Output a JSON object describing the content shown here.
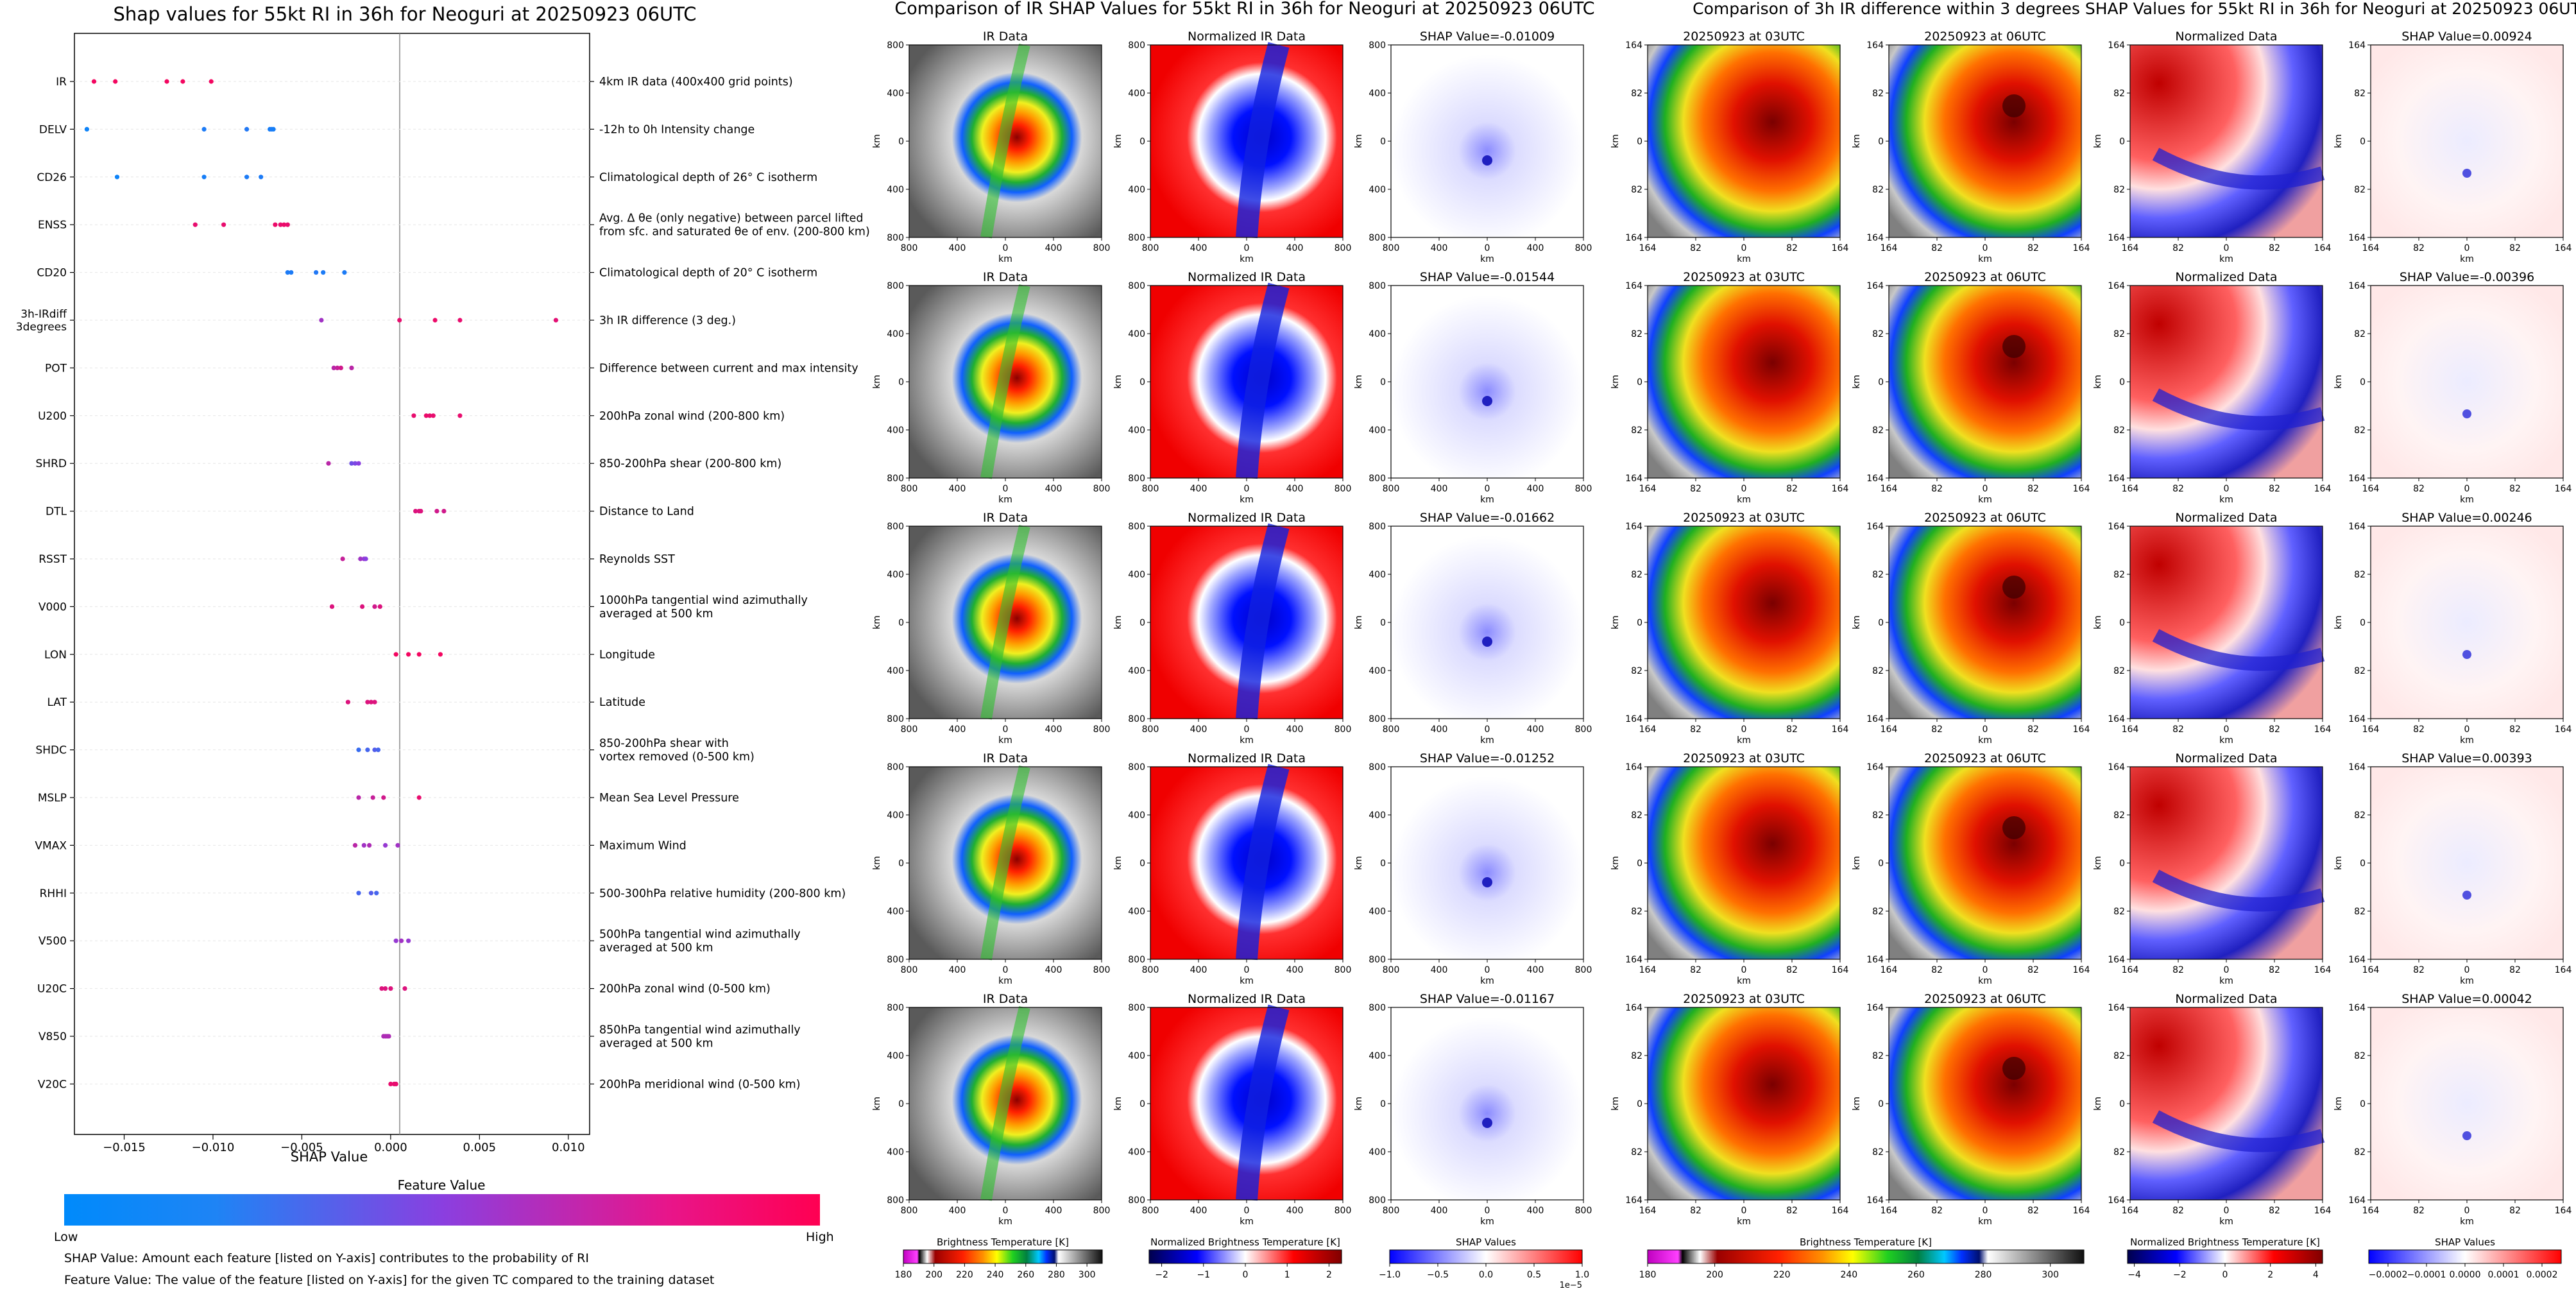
{
  "left_panel": {
    "title": "Shap values for 55kt RI in 36h for Neoguri at 20250923 06UTC",
    "colorbar_title": "Feature Value",
    "low_label": "Low",
    "high_label": "High",
    "note_shap": "SHAP Value: Amount each feature [listed on Y-axis] contributes to the probability of RI",
    "note_feature": "Feature Value: The value of the feature [listed on Y-axis] for the given TC compared to the training dataset",
    "features": [
      {
        "code": "IR",
        "desc": "4km IR data (400x400 grid points)"
      },
      {
        "code": "DELV",
        "desc": "-12h to 0h Intensity change"
      },
      {
        "code": "CD26",
        "desc": "Climatological depth of 26° C isotherm"
      },
      {
        "code": "ENSS",
        "desc": "Avg. Δ θe (only negative) between parcel lifted\nfrom sfc. and saturated θe of env. (200-800 km)"
      },
      {
        "code": "CD20",
        "desc": "Climatological depth of 20° C isotherm"
      },
      {
        "code": "3h-IRdiff\n3degrees",
        "desc": "3h IR difference (3 deg.)"
      },
      {
        "code": "POT",
        "desc": "Difference between current and max intensity"
      },
      {
        "code": "U200",
        "desc": "200hPa zonal wind (200-800 km)"
      },
      {
        "code": "SHRD",
        "desc": "850-200hPa shear (200-800 km)"
      },
      {
        "code": "DTL",
        "desc": "Distance to Land"
      },
      {
        "code": "RSST",
        "desc": "Reynolds SST"
      },
      {
        "code": "V000",
        "desc": "1000hPa tangential wind azimuthally\naveraged at 500 km"
      },
      {
        "code": "LON",
        "desc": "Longitude"
      },
      {
        "code": "LAT",
        "desc": "Latitude"
      },
      {
        "code": "SHDC",
        "desc": "850-200hPa shear with\nvortex removed (0-500 km)"
      },
      {
        "code": "MSLP",
        "desc": "Mean Sea Level Pressure"
      },
      {
        "code": "VMAX",
        "desc": "Maximum Wind"
      },
      {
        "code": "RHHI",
        "desc": "500-300hPa relative humidity (200-800 km)"
      },
      {
        "code": "V500",
        "desc": "500hPa tangential wind azimuthally\naveraged at 500 km"
      },
      {
        "code": "U20C",
        "desc": "200hPa zonal wind (0-500 km)"
      },
      {
        "code": "V850",
        "desc": "850hPa tangential wind azimuthally\naveraged at 500 km"
      },
      {
        "code": "V20C",
        "desc": "200hPa meridional wind (0-500 km)"
      }
    ]
  },
  "chart_data": [
    {
      "type": "scatter",
      "title": "Shap values for 55kt RI in 36h for Neoguri at 20250923 06UTC",
      "xlabel": "SHAP Value",
      "xlim": [
        -0.0178,
        0.0112
      ],
      "xticks": [
        -0.015,
        -0.01,
        -0.005,
        0.0,
        0.005,
        0.01
      ],
      "xtick_labels": [
        "−0.015",
        "−0.010",
        "−0.005",
        "0.000",
        "0.005",
        "0.010"
      ],
      "color_scale": [
        "#008afb",
        "#8a3fe0",
        "#ff0052"
      ],
      "color_scale_label": "Feature Value",
      "categories": [
        "IR",
        "DELV",
        "CD26",
        "ENSS",
        "CD20",
        "3h-IRdiff 3degrees",
        "POT",
        "U200",
        "SHRD",
        "DTL",
        "RSST",
        "V000",
        "LON",
        "LAT",
        "SHDC",
        "MSLP",
        "VMAX",
        "RHHI",
        "V500",
        "U20C",
        "V850",
        "V20C"
      ],
      "series": [
        {
          "name": "IR",
          "points": [
            [
              -0.0167,
              0.95
            ],
            [
              -0.0155,
              0.95
            ],
            [
              -0.0126,
              0.95
            ],
            [
              -0.0117,
              0.95
            ],
            [
              -0.0101,
              0.95
            ]
          ]
        },
        {
          "name": "DELV",
          "points": [
            [
              -0.0171,
              0.05
            ],
            [
              -0.0105,
              0.1
            ],
            [
              -0.0081,
              0.12
            ],
            [
              -0.0068,
              0.08
            ],
            [
              -0.0067,
              0.1
            ],
            [
              -0.0066,
              0.08
            ]
          ]
        },
        {
          "name": "CD26",
          "points": [
            [
              -0.0154,
              0.05
            ],
            [
              -0.0105,
              0.08
            ],
            [
              -0.0081,
              0.1
            ],
            [
              -0.0073,
              0.1
            ]
          ]
        },
        {
          "name": "ENSS",
          "points": [
            [
              -0.011,
              0.9
            ],
            [
              -0.0094,
              0.9
            ],
            [
              -0.0065,
              0.92
            ],
            [
              -0.0062,
              0.9
            ],
            [
              -0.006,
              0.92
            ],
            [
              -0.0058,
              0.9
            ]
          ]
        },
        {
          "name": "CD20",
          "points": [
            [
              -0.0058,
              0.1
            ],
            [
              -0.0056,
              0.1
            ],
            [
              -0.0042,
              0.12
            ],
            [
              -0.0038,
              0.1
            ],
            [
              -0.0026,
              0.1
            ]
          ]
        },
        {
          "name": "3h-IRdiff 3degrees",
          "points": [
            [
              -0.0039,
              0.6
            ],
            [
              0.0005,
              0.9
            ],
            [
              0.0025,
              0.92
            ],
            [
              0.0039,
              0.9
            ],
            [
              0.0093,
              0.88
            ]
          ]
        },
        {
          "name": "POT",
          "points": [
            [
              -0.0032,
              0.7
            ],
            [
              -0.003,
              0.75
            ],
            [
              -0.0028,
              0.8
            ],
            [
              -0.0022,
              0.7
            ]
          ]
        },
        {
          "name": "U200",
          "points": [
            [
              0.0013,
              0.9
            ],
            [
              0.002,
              0.92
            ],
            [
              0.0022,
              0.9
            ],
            [
              0.0024,
              0.9
            ],
            [
              0.0039,
              0.9
            ]
          ]
        },
        {
          "name": "SHRD",
          "points": [
            [
              -0.0035,
              0.7
            ],
            [
              -0.0022,
              0.4
            ],
            [
              -0.002,
              0.45
            ],
            [
              -0.0018,
              0.5
            ]
          ]
        },
        {
          "name": "DTL",
          "points": [
            [
              0.0014,
              0.85
            ],
            [
              0.0016,
              0.85
            ],
            [
              0.0017,
              0.85
            ],
            [
              0.0026,
              0.8
            ],
            [
              0.003,
              0.8
            ]
          ]
        },
        {
          "name": "RSST",
          "points": [
            [
              -0.0027,
              0.75
            ],
            [
              -0.0017,
              0.6
            ],
            [
              -0.0015,
              0.55
            ],
            [
              -0.0014,
              0.5
            ]
          ]
        },
        {
          "name": "V000",
          "points": [
            [
              -0.0033,
              0.85
            ],
            [
              -0.0016,
              0.85
            ],
            [
              -0.0009,
              0.8
            ],
            [
              -0.0006,
              0.85
            ]
          ]
        },
        {
          "name": "LON",
          "points": [
            [
              0.0003,
              0.95
            ],
            [
              0.001,
              0.95
            ],
            [
              0.0016,
              0.95
            ],
            [
              0.0028,
              0.95
            ]
          ]
        },
        {
          "name": "LAT",
          "points": [
            [
              -0.0024,
              0.85
            ],
            [
              -0.0013,
              0.85
            ],
            [
              -0.0011,
              0.85
            ],
            [
              -0.0009,
              0.85
            ]
          ]
        },
        {
          "name": "SHDC",
          "points": [
            [
              -0.0018,
              0.2
            ],
            [
              -0.0013,
              0.25
            ],
            [
              -0.0009,
              0.3
            ],
            [
              -0.0007,
              0.25
            ]
          ]
        },
        {
          "name": "MSLP",
          "points": [
            [
              -0.0018,
              0.7
            ],
            [
              -0.001,
              0.75
            ],
            [
              -0.0004,
              0.8
            ],
            [
              0.0016,
              0.9
            ]
          ]
        },
        {
          "name": "VMAX",
          "points": [
            [
              -0.002,
              0.7
            ],
            [
              -0.0015,
              0.6
            ],
            [
              -0.0012,
              0.65
            ],
            [
              -0.0003,
              0.55
            ],
            [
              0.0004,
              0.6
            ]
          ]
        },
        {
          "name": "RHHI",
          "points": [
            [
              -0.0018,
              0.25
            ],
            [
              -0.0011,
              0.3
            ],
            [
              -0.0008,
              0.25
            ]
          ]
        },
        {
          "name": "V500",
          "points": [
            [
              0.0003,
              0.55
            ],
            [
              0.0006,
              0.6
            ],
            [
              0.001,
              0.55
            ]
          ]
        },
        {
          "name": "U20C",
          "points": [
            [
              -0.0005,
              0.85
            ],
            [
              -0.0003,
              0.85
            ],
            [
              0.0,
              0.85
            ],
            [
              0.0008,
              0.85
            ]
          ]
        },
        {
          "name": "V850",
          "points": [
            [
              -0.0004,
              0.65
            ],
            [
              -0.0003,
              0.65
            ],
            [
              -0.0002,
              0.65
            ],
            [
              -0.0001,
              0.65
            ]
          ]
        },
        {
          "name": "V20C",
          "points": [
            [
              0.0,
              0.9
            ],
            [
              0.0002,
              0.9
            ],
            [
              0.0003,
              0.9
            ]
          ]
        }
      ]
    },
    {
      "type": "heatmap",
      "title": "Comparison of IR SHAP Values for 55kt RI in 36h for Neoguri at 20250923 06UTC",
      "columns": [
        "IR Data",
        "Normalized IR Data",
        "SHAP Value"
      ],
      "shap_values": [
        "-0.01009",
        "-0.01544",
        "-0.01662",
        "-0.01252",
        "-0.01167"
      ],
      "xlabel": "km",
      "ylabel": "km",
      "ticks": [
        "800",
        "400",
        "0",
        "400",
        "800"
      ]
    },
    {
      "type": "heatmap",
      "title": "Comparison of 3h IR difference within 3 degrees SHAP Values for 55kt RI in 36h for Neoguri at 20250923 06UTC",
      "columns": [
        "20250923 at 03UTC",
        "20250923 at 06UTC",
        "Normalized Data",
        "SHAP Value"
      ],
      "shap_values": [
        "0.00924",
        "-0.00396",
        "0.00246",
        "0.00393",
        "0.00042"
      ],
      "xlabel": "km",
      "ylabel": "km",
      "ticks": [
        "164",
        "82",
        "0",
        "82",
        "164"
      ]
    }
  ],
  "middle_panel": {
    "title": "Comparison of IR SHAP Values for 55kt RI in 36h for Neoguri at 20250923 06UTC",
    "col1_title": "IR Data",
    "col2_title": "Normalized IR Data",
    "shap_prefix": "SHAP Value=",
    "axis_label": "km",
    "ticks": [
      "800",
      "400",
      "0",
      "400",
      "800"
    ],
    "colorbars": [
      {
        "label": "Brightness Temperature [K]",
        "ticks": [
          "180",
          "200",
          "220",
          "240",
          "260",
          "280",
          "300"
        ],
        "lim": [
          180,
          310
        ]
      },
      {
        "label": "Normalized Brightness Temperature [K]",
        "ticks": [
          "−2",
          "−1",
          "0",
          "1",
          "2"
        ],
        "lim": [
          -2.3,
          2.3
        ]
      },
      {
        "label": "SHAP Values",
        "ticks": [
          "−1.0",
          "−0.5",
          "0.0",
          "0.5",
          "1.0"
        ],
        "lim": [
          -1.0,
          1.0
        ],
        "exponent": "1e−5"
      }
    ]
  },
  "right_panel": {
    "title": "Comparison of 3h IR difference within 3 degrees SHAP Values for 55kt RI in 36h for Neoguri at 20250923 06UTC",
    "col1_title": "20250923 at 03UTC",
    "col2_title": "20250923 at 06UTC",
    "col3_title": "Normalized Data",
    "shap_prefix": "SHAP Value=",
    "axis_label": "km",
    "ticks": [
      "164",
      "82",
      "0",
      "82",
      "164"
    ],
    "colorbars": [
      {
        "label": "Brightness Temperature [K]",
        "ticks": [
          "180",
          "200",
          "220",
          "240",
          "260",
          "280",
          "300"
        ],
        "lim": [
          180,
          310
        ]
      },
      {
        "label": "Normalized Brightness Temperature [K]",
        "ticks": [
          "−4",
          "−2",
          "0",
          "2",
          "4"
        ],
        "lim": [
          -4.3,
          4.3
        ]
      },
      {
        "label": "SHAP Values",
        "ticks": [
          "−0.0002",
          "−0.0001",
          "0.0000",
          "0.0001",
          "0.0002"
        ],
        "lim": [
          -0.00025,
          0.00025
        ]
      }
    ]
  }
}
